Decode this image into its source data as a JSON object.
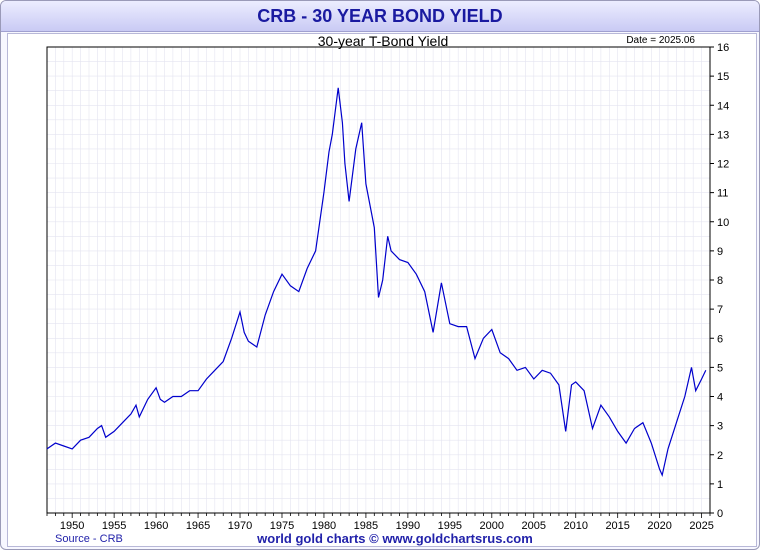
{
  "header": {
    "title": "CRB - 30 YEAR BOND YIELD"
  },
  "footer": {
    "source": "Source - CRB",
    "site": "world gold charts © www.goldchartsrus.com"
  },
  "chart_data": {
    "type": "line",
    "title": "30-year T-Bond Yield",
    "date_label": "Date = 2025.06",
    "xlim": [
      1947,
      2026
    ],
    "ylim": [
      0,
      16
    ],
    "x_ticks": [
      1950,
      1955,
      1960,
      1965,
      1970,
      1975,
      1980,
      1985,
      1990,
      1995,
      2000,
      2005,
      2010,
      2015,
      2020,
      2025
    ],
    "y_ticks": [
      0,
      1,
      2,
      3,
      4,
      5,
      6,
      7,
      8,
      9,
      10,
      11,
      12,
      13,
      14,
      15,
      16
    ],
    "y_axis_side": "right",
    "grid": true,
    "line_color": "#0000cc",
    "series": [
      {
        "values": [
          [
            1947.0,
            2.2
          ],
          [
            1948.0,
            2.4
          ],
          [
            1949.0,
            2.3
          ],
          [
            1950.0,
            2.2
          ],
          [
            1951.0,
            2.5
          ],
          [
            1952.0,
            2.6
          ],
          [
            1953.0,
            2.9
          ],
          [
            1953.5,
            3.0
          ],
          [
            1954.0,
            2.6
          ],
          [
            1955.0,
            2.8
          ],
          [
            1956.0,
            3.1
          ],
          [
            1957.0,
            3.4
          ],
          [
            1957.6,
            3.7
          ],
          [
            1958.0,
            3.3
          ],
          [
            1959.0,
            3.9
          ],
          [
            1960.0,
            4.3
          ],
          [
            1960.5,
            3.9
          ],
          [
            1961.0,
            3.8
          ],
          [
            1962.0,
            4.0
          ],
          [
            1963.0,
            4.0
          ],
          [
            1964.0,
            4.2
          ],
          [
            1965.0,
            4.2
          ],
          [
            1966.0,
            4.6
          ],
          [
            1967.0,
            4.9
          ],
          [
            1968.0,
            5.2
          ],
          [
            1969.0,
            6.0
          ],
          [
            1970.0,
            6.9
          ],
          [
            1970.5,
            6.2
          ],
          [
            1971.0,
            5.9
          ],
          [
            1972.0,
            5.7
          ],
          [
            1973.0,
            6.8
          ],
          [
            1974.0,
            7.6
          ],
          [
            1975.0,
            8.2
          ],
          [
            1976.0,
            7.8
          ],
          [
            1977.0,
            7.6
          ],
          [
            1978.0,
            8.4
          ],
          [
            1979.0,
            9.0
          ],
          [
            1980.0,
            11.0
          ],
          [
            1980.6,
            12.4
          ],
          [
            1981.0,
            13.0
          ],
          [
            1981.7,
            14.6
          ],
          [
            1982.2,
            13.4
          ],
          [
            1982.5,
            12.0
          ],
          [
            1983.0,
            10.7
          ],
          [
            1983.8,
            12.5
          ],
          [
            1984.5,
            13.4
          ],
          [
            1985.0,
            11.3
          ],
          [
            1986.0,
            9.8
          ],
          [
            1986.5,
            7.4
          ],
          [
            1987.0,
            8.0
          ],
          [
            1987.6,
            9.5
          ],
          [
            1988.0,
            9.0
          ],
          [
            1989.0,
            8.7
          ],
          [
            1990.0,
            8.6
          ],
          [
            1991.0,
            8.2
          ],
          [
            1992.0,
            7.6
          ],
          [
            1993.0,
            6.2
          ],
          [
            1994.0,
            7.9
          ],
          [
            1995.0,
            6.5
          ],
          [
            1996.0,
            6.4
          ],
          [
            1997.0,
            6.4
          ],
          [
            1998.0,
            5.3
          ],
          [
            1999.0,
            6.0
          ],
          [
            2000.0,
            6.3
          ],
          [
            2001.0,
            5.5
          ],
          [
            2002.0,
            5.3
          ],
          [
            2003.0,
            4.9
          ],
          [
            2004.0,
            5.0
          ],
          [
            2005.0,
            4.6
          ],
          [
            2006.0,
            4.9
          ],
          [
            2007.0,
            4.8
          ],
          [
            2008.0,
            4.4
          ],
          [
            2008.8,
            2.8
          ],
          [
            2009.5,
            4.4
          ],
          [
            2010.0,
            4.5
          ],
          [
            2011.0,
            4.2
          ],
          [
            2012.0,
            2.9
          ],
          [
            2013.0,
            3.7
          ],
          [
            2014.0,
            3.3
          ],
          [
            2015.0,
            2.8
          ],
          [
            2016.0,
            2.4
          ],
          [
            2017.0,
            2.9
          ],
          [
            2018.0,
            3.1
          ],
          [
            2019.0,
            2.4
          ],
          [
            2020.0,
            1.5
          ],
          [
            2020.3,
            1.3
          ],
          [
            2021.0,
            2.2
          ],
          [
            2022.0,
            3.1
          ],
          [
            2023.0,
            4.0
          ],
          [
            2023.8,
            5.0
          ],
          [
            2024.3,
            4.2
          ],
          [
            2025.0,
            4.6
          ],
          [
            2025.5,
            4.9
          ]
        ]
      }
    ]
  }
}
